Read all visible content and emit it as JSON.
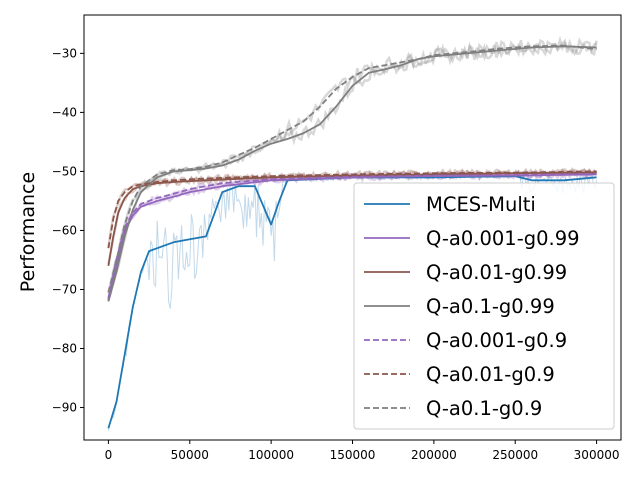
{
  "chart_data": {
    "type": "line",
    "title": "",
    "xlabel": "",
    "ylabel": "Performance",
    "xlim": [
      -15000,
      315000
    ],
    "ylim": [
      -95.5,
      -23.5
    ],
    "xticks": [
      0,
      50000,
      100000,
      150000,
      200000,
      250000,
      300000
    ],
    "xtick_labels": [
      "0",
      "50000",
      "100000",
      "150000",
      "200000",
      "250000",
      "300000"
    ],
    "yticks": [
      -90,
      -80,
      -70,
      -60,
      -50,
      -40,
      -30
    ],
    "ytick_labels": [
      "−90",
      "−80",
      "−70",
      "−60",
      "−50",
      "−40",
      "−30"
    ],
    "grid": false,
    "legend_position": "center-right",
    "series": [
      {
        "name": "MCES-Multi",
        "color": "#1f77b4",
        "style": "solid",
        "noise_band": true,
        "x": [
          0,
          5000,
          10000,
          15000,
          20000,
          25000,
          30000,
          35000,
          40000,
          50000,
          60000,
          70000,
          80000,
          90000,
          100000,
          105000,
          110000,
          150000,
          200000,
          250000,
          260000,
          280000,
          300000
        ],
        "values": [
          -93.5,
          -89,
          -81,
          -73,
          -67,
          -63.5,
          -63,
          -62.5,
          -62,
          -61.5,
          -61,
          -53.5,
          -52.5,
          -52.5,
          -59,
          -55,
          -51.5,
          -51,
          -51,
          -50.8,
          -51.5,
          -51.5,
          -51
        ]
      },
      {
        "name": "Q-a0.001-g0.99",
        "color": "#9467bd",
        "style": "solid",
        "x": [
          0,
          5000,
          10000,
          15000,
          20000,
          30000,
          40000,
          50000,
          70000,
          100000,
          150000,
          200000,
          250000,
          300000
        ],
        "values": [
          -72,
          -66,
          -60,
          -57.5,
          -56,
          -55,
          -54.3,
          -53.5,
          -52.5,
          -51.5,
          -51,
          -50.8,
          -50.7,
          -50.5
        ]
      },
      {
        "name": "Q-a0.01-g0.99",
        "color": "#8c564b",
        "style": "solid",
        "x": [
          0,
          3000,
          6000,
          10000,
          15000,
          20000,
          30000,
          40000,
          60000,
          100000,
          150000,
          200000,
          250000,
          300000
        ],
        "values": [
          -66,
          -61,
          -57,
          -54.5,
          -53,
          -52.5,
          -52,
          -51.8,
          -51.5,
          -51,
          -50.7,
          -50.5,
          -50.3,
          -50.2
        ]
      },
      {
        "name": "Q-a0.1-g0.99",
        "color": "#7f7f7f",
        "style": "solid",
        "x": [
          0,
          5000,
          10000,
          15000,
          20000,
          30000,
          40000,
          50000,
          60000,
          70000,
          80000,
          90000,
          100000,
          110000,
          120000,
          130000,
          140000,
          150000,
          160000,
          170000,
          180000,
          190000,
          200000,
          220000,
          240000,
          260000,
          280000,
          300000
        ],
        "values": [
          -72,
          -67,
          -61,
          -56.5,
          -53.5,
          -51,
          -50,
          -49.8,
          -49.5,
          -49,
          -48,
          -46.5,
          -45.3,
          -44.5,
          -43.5,
          -42,
          -39,
          -35.5,
          -33.3,
          -32.7,
          -32,
          -31,
          -30.5,
          -30,
          -29.5,
          -29,
          -28.8,
          -29
        ]
      },
      {
        "name": "Q-a0.001-g0.9",
        "color": "#9467bd",
        "style": "dashed",
        "x": [
          0,
          5000,
          10000,
          15000,
          20000,
          30000,
          40000,
          50000,
          70000,
          100000,
          150000,
          200000,
          250000,
          300000
        ],
        "values": [
          -71.5,
          -65,
          -59.5,
          -57,
          -55.5,
          -54.5,
          -53.8,
          -53,
          -52,
          -51.3,
          -50.9,
          -50.7,
          -50.6,
          -50.4
        ]
      },
      {
        "name": "Q-a0.01-g0.9",
        "color": "#8c564b",
        "style": "dashed",
        "x": [
          0,
          3000,
          6000,
          10000,
          15000,
          20000,
          30000,
          40000,
          60000,
          100000,
          150000,
          200000,
          250000,
          300000
        ],
        "values": [
          -63,
          -58,
          -55,
          -53.5,
          -52.5,
          -52.2,
          -51.8,
          -51.5,
          -51.2,
          -50.8,
          -50.5,
          -50.3,
          -50.2,
          -50
        ]
      },
      {
        "name": "Q-a0.1-g0.9",
        "color": "#7f7f7f",
        "style": "dashed",
        "x": [
          0,
          5000,
          10000,
          15000,
          20000,
          30000,
          40000,
          50000,
          60000,
          70000,
          80000,
          90000,
          100000,
          110000,
          120000,
          130000,
          140000,
          150000,
          160000,
          170000,
          180000,
          190000,
          200000,
          220000,
          240000,
          260000,
          280000,
          300000
        ],
        "values": [
          -70.5,
          -65,
          -59,
          -55,
          -52.5,
          -50.5,
          -49.8,
          -49.6,
          -49.2,
          -48.5,
          -47.2,
          -46,
          -44.5,
          -43,
          -41.5,
          -39,
          -36,
          -34,
          -32.5,
          -32,
          -31.5,
          -31,
          -30.3,
          -29.8,
          -29.2,
          -28.8,
          -28.7,
          -29.3
        ]
      }
    ]
  }
}
